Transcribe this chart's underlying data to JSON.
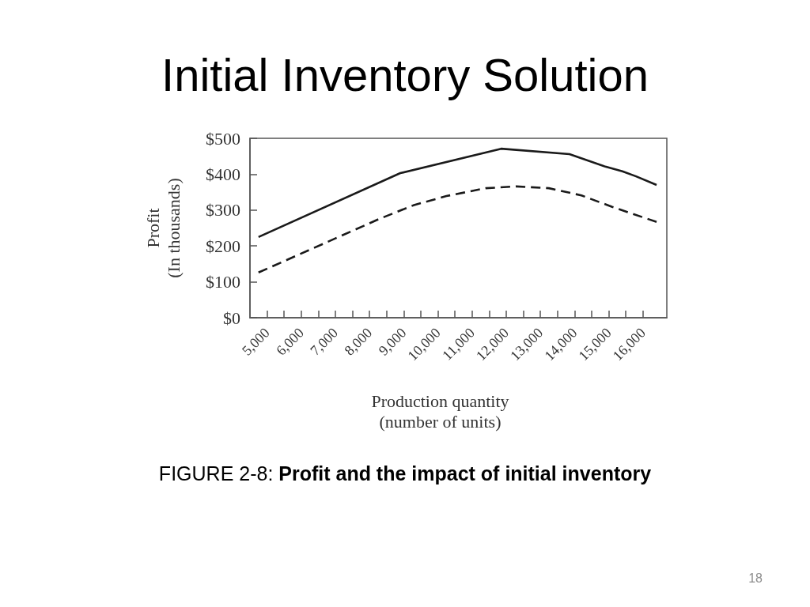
{
  "chart_data": {
    "type": "line",
    "title": "Initial Inventory Solution",
    "xlabel": "Production quantity\n(number of units)",
    "ylabel": "Profit\n(In thousands)",
    "annotations": [
      "FIGURE 2-8: Profit and the impact of initial inventory",
      "18"
    ],
    "series": [
      {
        "color": "#1a1a1a",
        "line_style": "solid",
        "x": [
          4750,
          8900,
          11850,
          13850,
          14900,
          15400,
          15800,
          16400
        ],
        "values": [
          225,
          403,
          471,
          456,
          421,
          408,
          394,
          370
        ]
      },
      {
        "color": "#1a1a1a",
        "line_style": "dashed",
        "x": [
          4750,
          8300,
          9300,
          10250,
          11400,
          12300,
          13250,
          14200,
          15100,
          16400
        ],
        "values": [
          126,
          276,
          314,
          339,
          361,
          366,
          361,
          341,
          309,
          267
        ]
      }
    ],
    "xlim": [
      4500,
      16700
    ],
    "xticks": [
      {
        "value": 5000,
        "label": "5,000"
      },
      {
        "value": 5500,
        "label": null
      },
      {
        "value": 6000,
        "label": "6,000"
      },
      {
        "value": 6500,
        "label": null
      },
      {
        "value": 7000,
        "label": "7,000"
      },
      {
        "value": 7500,
        "label": null
      },
      {
        "value": 8000,
        "label": "8,000"
      },
      {
        "value": 8500,
        "label": null
      },
      {
        "value": 9000,
        "label": "9,000"
      },
      {
        "value": 9500,
        "label": null
      },
      {
        "value": 10000,
        "label": "10,000"
      },
      {
        "value": 10500,
        "label": null
      },
      {
        "value": 11000,
        "label": "11,000"
      },
      {
        "value": 11500,
        "label": null
      },
      {
        "value": 12000,
        "label": "12,000"
      },
      {
        "value": 12500,
        "label": null
      },
      {
        "value": 13000,
        "label": "13,000"
      },
      {
        "value": 13500,
        "label": null
      },
      {
        "value": 14000,
        "label": "14,000"
      },
      {
        "value": 14500,
        "label": null
      },
      {
        "value": 15000,
        "label": "15,000"
      },
      {
        "value": 15500,
        "label": null
      },
      {
        "value": 16000,
        "label": "16,000"
      }
    ],
    "ylim": [
      0,
      500
    ],
    "yticks": [
      {
        "value": 0,
        "label": "$0"
      },
      {
        "value": 100,
        "label": "$100"
      },
      {
        "value": 200,
        "label": "$200"
      },
      {
        "value": 300,
        "label": "$300"
      },
      {
        "value": 400,
        "label": "$400"
      },
      {
        "value": 500,
        "label": "$500"
      }
    ]
  }
}
